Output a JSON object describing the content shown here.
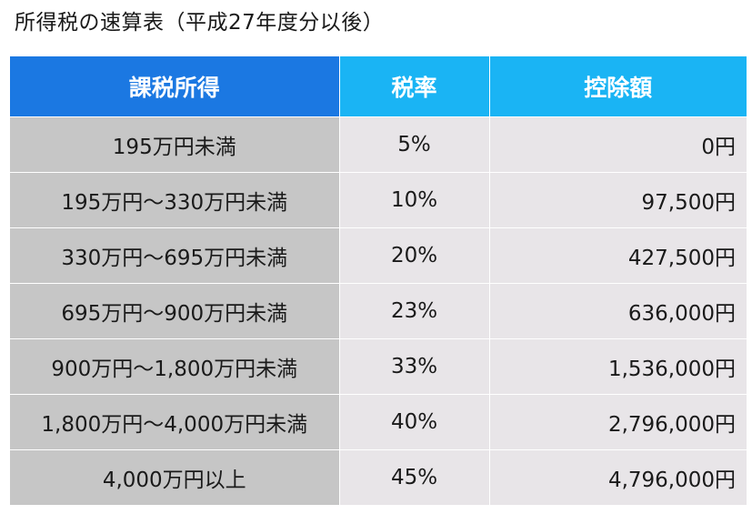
{
  "title": "所得税の速算表（平成27年度分以後）",
  "table": {
    "headers": [
      "課税所得",
      "税率",
      "控除額"
    ],
    "rows": [
      [
        "195万円未満",
        "5%",
        "0円"
      ],
      [
        "195万円〜330万円未満",
        "10%",
        "97,500円"
      ],
      [
        "330万円〜695万円未満",
        "20%",
        "427,500円"
      ],
      [
        "695万円〜900万円未満",
        "23%",
        "636,000円"
      ],
      [
        "900万円〜1,800万円未満",
        "33%",
        "1,536,000円"
      ],
      [
        "1,800万円〜4,000万円未満",
        "40%",
        "2,796,000円"
      ],
      [
        "4,000万円以上",
        "45%",
        "4,796,000円"
      ]
    ]
  },
  "colors": {
    "header_primary": "#1b78e2",
    "header_secondary": "#1ab4f4",
    "income_cell": "#c6c6c6",
    "value_cell": "#e8e5e8"
  }
}
